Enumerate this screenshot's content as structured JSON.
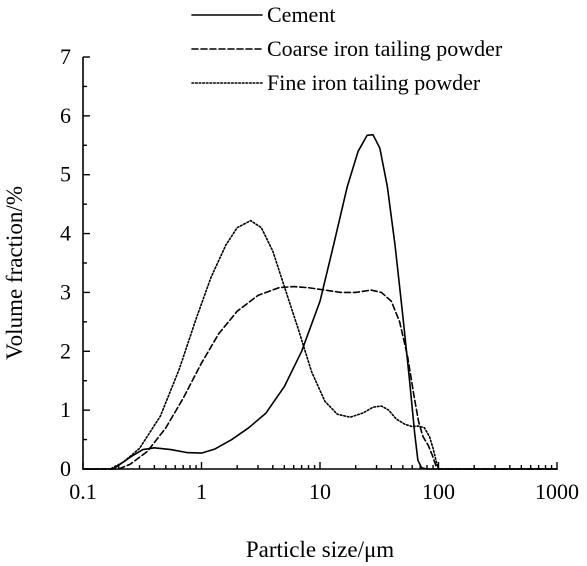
{
  "chart_data": {
    "type": "line",
    "xlabel": "Particle size/μm",
    "ylabel": "Volume fraction/%",
    "xscale": "log",
    "xlim": [
      0.1,
      1000
    ],
    "ylim": [
      0,
      7
    ],
    "xticks": [
      "0.1",
      "1",
      "10",
      "100",
      "1000"
    ],
    "yticks": [
      "0",
      "1",
      "2",
      "3",
      "4",
      "5",
      "6",
      "7"
    ],
    "grid": false,
    "legend_position": "top-right",
    "series": [
      {
        "name": "Cement",
        "style": "solid",
        "points": [
          [
            0.1,
            0
          ],
          [
            0.18,
            0
          ],
          [
            0.25,
            0.2
          ],
          [
            0.32,
            0.33
          ],
          [
            0.4,
            0.36
          ],
          [
            0.55,
            0.33
          ],
          [
            0.75,
            0.28
          ],
          [
            1.0,
            0.27
          ],
          [
            1.3,
            0.34
          ],
          [
            1.8,
            0.5
          ],
          [
            2.5,
            0.7
          ],
          [
            3.5,
            0.95
          ],
          [
            5,
            1.4
          ],
          [
            7,
            2.0
          ],
          [
            10,
            2.85
          ],
          [
            13,
            3.8
          ],
          [
            17,
            4.8
          ],
          [
            21,
            5.4
          ],
          [
            25,
            5.67
          ],
          [
            28,
            5.68
          ],
          [
            32,
            5.45
          ],
          [
            37,
            4.8
          ],
          [
            43,
            3.8
          ],
          [
            50,
            2.6
          ],
          [
            57,
            1.5
          ],
          [
            63,
            0.6
          ],
          [
            67,
            0.15
          ],
          [
            72,
            0.02
          ],
          [
            80,
            0
          ],
          [
            150,
            0
          ],
          [
            1000,
            0
          ]
        ]
      },
      {
        "name": "Coarse iron tailing powder",
        "style": "dashed",
        "points": [
          [
            0.1,
            0
          ],
          [
            0.2,
            0
          ],
          [
            0.25,
            0.08
          ],
          [
            0.35,
            0.3
          ],
          [
            0.5,
            0.7
          ],
          [
            0.7,
            1.2
          ],
          [
            1.0,
            1.8
          ],
          [
            1.4,
            2.3
          ],
          [
            2.0,
            2.68
          ],
          [
            3.0,
            2.95
          ],
          [
            4.5,
            3.08
          ],
          [
            6,
            3.1
          ],
          [
            8,
            3.08
          ],
          [
            11,
            3.04
          ],
          [
            15,
            3.0
          ],
          [
            20,
            3.0
          ],
          [
            27,
            3.04
          ],
          [
            33,
            3.0
          ],
          [
            40,
            2.85
          ],
          [
            47,
            2.5
          ],
          [
            55,
            1.9
          ],
          [
            62,
            1.25
          ],
          [
            68,
            0.8
          ],
          [
            74,
            0.55
          ],
          [
            82,
            0.4
          ],
          [
            88,
            0.25
          ],
          [
            95,
            0.06
          ],
          [
            100,
            0
          ],
          [
            1000,
            0
          ]
        ]
      },
      {
        "name": "Fine iron tailing powder",
        "style": "dotted",
        "points": [
          [
            0.1,
            0
          ],
          [
            0.17,
            0
          ],
          [
            0.22,
            0.12
          ],
          [
            0.3,
            0.35
          ],
          [
            0.45,
            0.9
          ],
          [
            0.65,
            1.7
          ],
          [
            0.9,
            2.55
          ],
          [
            1.2,
            3.25
          ],
          [
            1.6,
            3.8
          ],
          [
            2.0,
            4.1
          ],
          [
            2.6,
            4.22
          ],
          [
            3.2,
            4.1
          ],
          [
            4.0,
            3.7
          ],
          [
            5,
            3.1
          ],
          [
            6.5,
            2.4
          ],
          [
            8.5,
            1.65
          ],
          [
            11,
            1.15
          ],
          [
            14,
            0.93
          ],
          [
            18,
            0.88
          ],
          [
            23,
            0.95
          ],
          [
            28,
            1.05
          ],
          [
            33,
            1.07
          ],
          [
            38,
            1.0
          ],
          [
            44,
            0.85
          ],
          [
            52,
            0.76
          ],
          [
            60,
            0.72
          ],
          [
            68,
            0.73
          ],
          [
            76,
            0.7
          ],
          [
            84,
            0.55
          ],
          [
            90,
            0.35
          ],
          [
            96,
            0.12
          ],
          [
            100,
            0
          ],
          [
            1000,
            0
          ]
        ]
      }
    ]
  }
}
